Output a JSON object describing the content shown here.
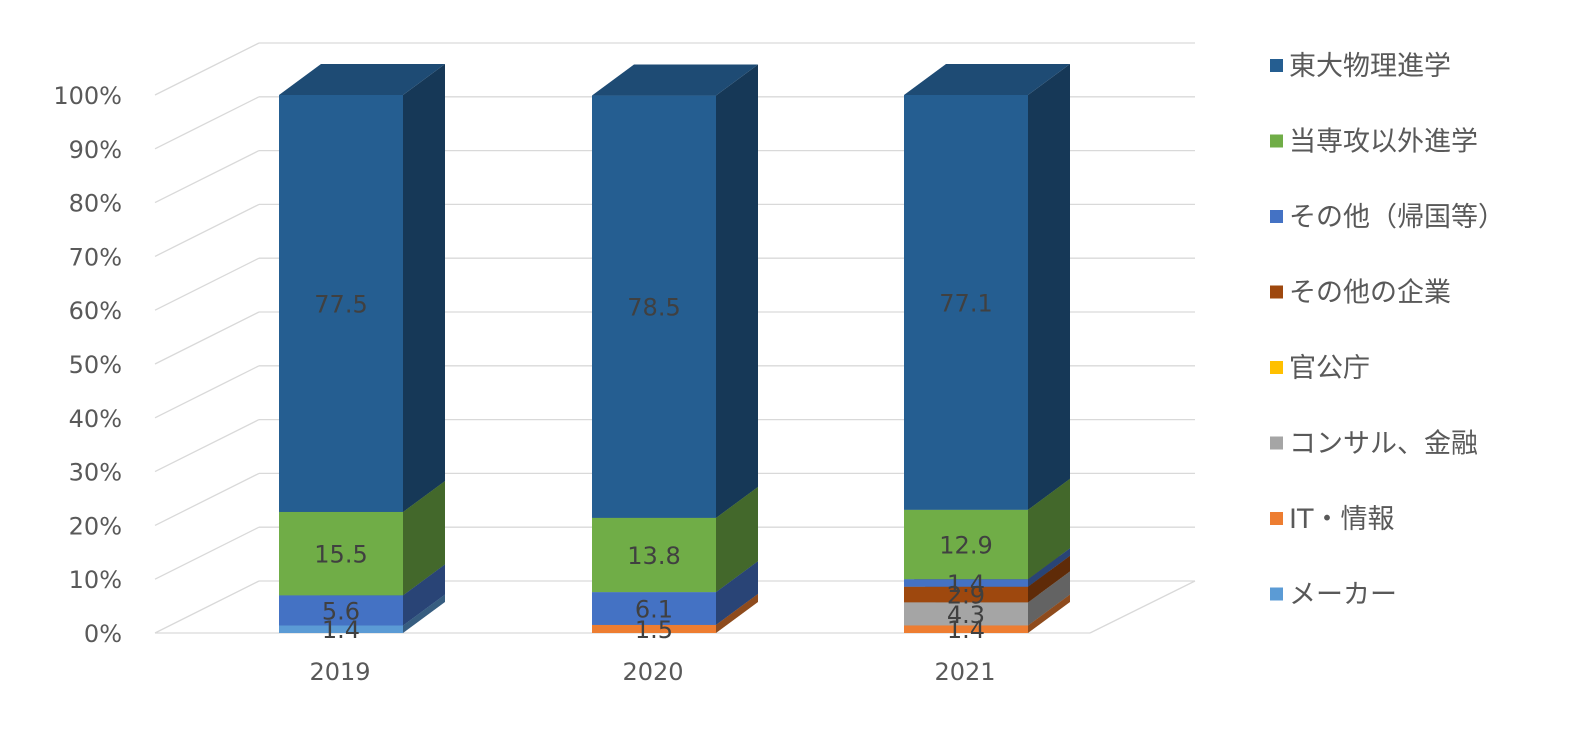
{
  "chart_data": {
    "type": "bar",
    "stacked": true,
    "percent_stacked": true,
    "style": "3d",
    "categories": [
      "2019",
      "2020",
      "2021"
    ],
    "y_ticks": [
      "0%",
      "10%",
      "20%",
      "30%",
      "40%",
      "50%",
      "60%",
      "70%",
      "80%",
      "90%",
      "100%"
    ],
    "ylim": [
      0,
      100
    ],
    "grid": true,
    "legend_position": "right",
    "series": [
      {
        "name": "メーカー",
        "color": "#5B9BD5",
        "values": [
          1.4,
          0,
          0
        ],
        "labels": [
          "1.4",
          "",
          ""
        ]
      },
      {
        "name": "IT・情報",
        "color": "#ED7D31",
        "values": [
          0,
          1.5,
          1.4
        ],
        "labels": [
          "",
          "1.5",
          "1.4"
        ]
      },
      {
        "name": "コンサル、金融",
        "color": "#A5A5A5",
        "values": [
          0,
          0,
          4.3
        ],
        "labels": [
          "",
          "",
          "4.3"
        ]
      },
      {
        "name": "官公庁",
        "color": "#FFC000",
        "values": [
          0,
          0,
          0
        ],
        "labels": [
          "",
          "",
          ""
        ]
      },
      {
        "name": "その他の企業",
        "color": "#9E480E",
        "values": [
          0,
          0,
          2.9
        ],
        "labels": [
          "",
          "",
          "2.9"
        ]
      },
      {
        "name": "その他（帰国等）",
        "color": "#4472C4",
        "values": [
          5.6,
          6.1,
          1.4
        ],
        "labels": [
          "5.6",
          "6.1",
          "1.4"
        ]
      },
      {
        "name": "当専攻以外進学",
        "color": "#70AD47",
        "values": [
          15.5,
          13.8,
          12.9
        ],
        "labels": [
          "15.5",
          "13.8",
          "12.9"
        ]
      },
      {
        "name": "東大物理進学",
        "color": "#255E91",
        "values": [
          77.5,
          78.5,
          77.1
        ],
        "labels": [
          "77.5",
          "78.5",
          "77.1"
        ]
      }
    ],
    "legend_order": [
      "東大物理進学",
      "当専攻以外進学",
      "その他（帰国等）",
      "その他の企業",
      "官公庁",
      "コンサル、金融",
      "IT・情報",
      "メーカー"
    ]
  }
}
